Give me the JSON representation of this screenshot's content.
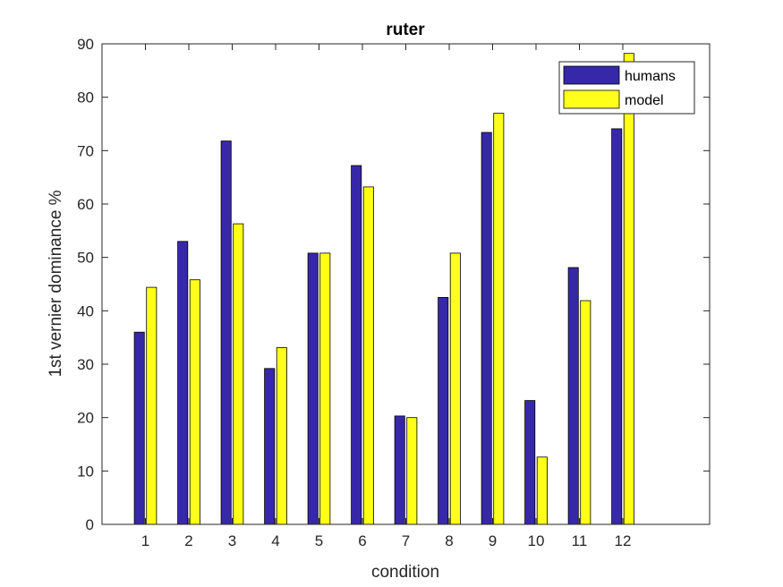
{
  "chart_data": {
    "type": "bar",
    "title": "ruter",
    "xlabel": "condition",
    "ylabel": "1st vernier dominance %",
    "categories": [
      "1",
      "2",
      "3",
      "4",
      "5",
      "6",
      "7",
      "8",
      "9",
      "10",
      "11",
      "12"
    ],
    "series": [
      {
        "name": "humans",
        "color": "#3728a8",
        "values": [
          36,
          53,
          71.8,
          29.2,
          50.8,
          67.2,
          20.3,
          42.5,
          73.4,
          23.2,
          48.1,
          74.1
        ]
      },
      {
        "name": "model",
        "color": "#ffff1a",
        "values": [
          44.4,
          45.8,
          56.3,
          33.1,
          50.8,
          63.2,
          20.0,
          50.8,
          77.0,
          12.6,
          41.9,
          88.2
        ]
      }
    ],
    "ylim": [
      0,
      90
    ],
    "xlim": [
      0,
      14
    ],
    "yticks": [
      "0",
      "10",
      "20",
      "30",
      "40",
      "50",
      "60",
      "70",
      "80",
      "90"
    ],
    "grid": false,
    "legend_position": "top-right"
  }
}
